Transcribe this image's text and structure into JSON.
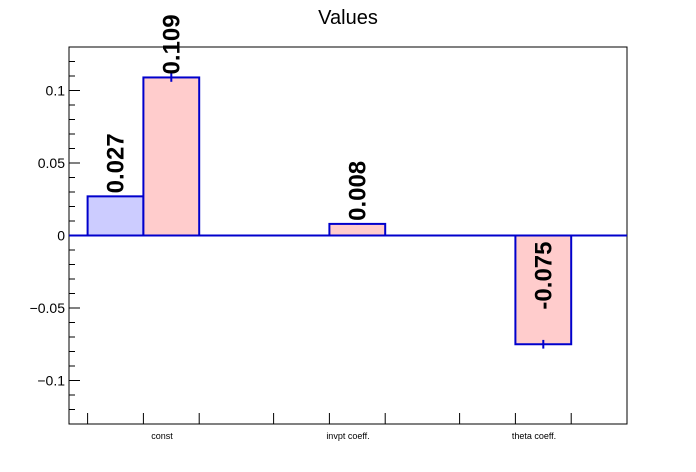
{
  "chart_data": {
    "type": "bar",
    "title": "Values",
    "xlabel": "",
    "ylabel": "",
    "ylim": [
      -0.13,
      0.13
    ],
    "y_ticks": [
      {
        "value": -0.1,
        "label": "−0.1"
      },
      {
        "value": -0.05,
        "label": "−0.05"
      },
      {
        "value": 0,
        "label": "0"
      },
      {
        "value": 0.05,
        "label": "0.05"
      },
      {
        "value": 0.1,
        "label": "0.1"
      }
    ],
    "categories": [
      "const",
      "invpt coeff.",
      "theta coeff."
    ],
    "series": [
      {
        "color": "#ccccff",
        "edge": "#0000cc",
        "values": [
          0.027,
          0.0,
          0.0
        ],
        "labels": [
          "0.027",
          "",
          ""
        ],
        "errors": [
          0,
          0,
          0
        ]
      },
      {
        "color": "#ffcccc",
        "edge": "#0000cc",
        "values": [
          0.109,
          0.008,
          -0.075
        ],
        "labels": [
          "0.109",
          "0.008",
          "-0.075"
        ],
        "errors": [
          0.003,
          0.0005,
          0.003
        ]
      }
    ],
    "grid": false,
    "zero_line": true
  }
}
